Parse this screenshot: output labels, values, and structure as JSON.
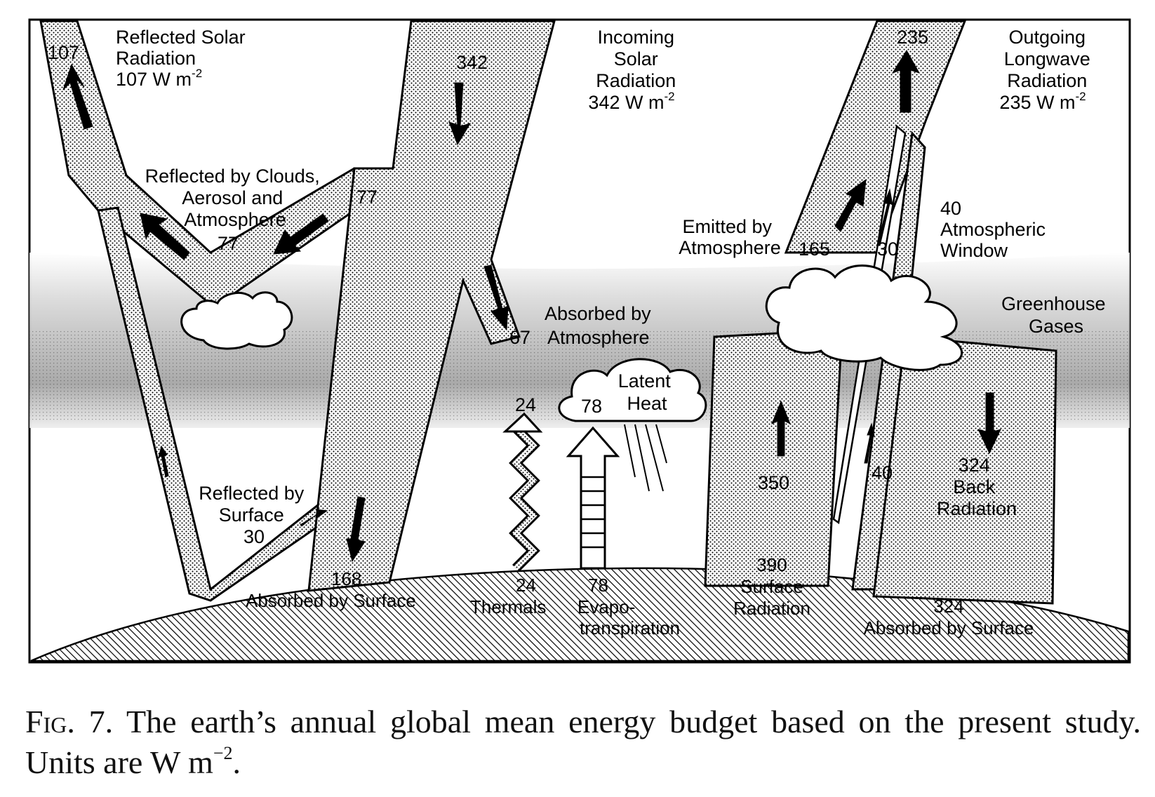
{
  "diagram": {
    "reflected_solar": {
      "lines": [
        "Reflected Solar",
        "Radiation",
        "107 W m"
      ],
      "sup": "-2",
      "value": "107"
    },
    "incoming_solar": {
      "lines": [
        "Incoming",
        "Solar",
        "Radiation",
        "342 W m"
      ],
      "sup": "-2",
      "value": "342"
    },
    "outgoing_longwave": {
      "lines": [
        "Outgoing",
        "Longwave",
        "Radiation",
        "235 W m"
      ],
      "sup": "-2",
      "value": "235"
    },
    "reflected_clouds": {
      "lines": [
        "Reflected by Clouds,",
        "Aerosol and",
        "Atmosphere"
      ],
      "value": "77",
      "arm_value": "77"
    },
    "emitted_atmosphere": {
      "lines": [
        "Emitted by",
        "Atmosphere"
      ],
      "value": "165",
      "cloud_value": "30"
    },
    "atmospheric_window": {
      "value": "40",
      "lines": [
        "Atmospheric",
        "Window"
      ]
    },
    "greenhouse": {
      "lines": [
        "Greenhouse",
        "Gases"
      ]
    },
    "absorbed_atmosphere": {
      "value": "67",
      "lines": [
        "Absorbed by",
        "Atmosphere"
      ]
    },
    "latent_heat": {
      "value": "78",
      "lines": [
        "Latent",
        "Heat"
      ]
    },
    "thermals_top": "24",
    "reflected_surface": {
      "lines": [
        "Reflected by",
        "Surface"
      ],
      "value": "30"
    },
    "surface_up": "350",
    "window_low": "40",
    "back_radiation": {
      "value": "324",
      "lines": [
        "Back",
        "Radiation"
      ]
    },
    "ground": {
      "absorbed_left_value": "168",
      "absorbed_left": "Absorbed by Surface",
      "thermals_value": "24",
      "thermals": "Thermals",
      "evapo_value": "78",
      "evapo": [
        "Evapo-",
        "transpiration"
      ],
      "surface_value": "390",
      "surface": [
        "Surface",
        "Radiation"
      ],
      "absorbed_right_value": "324",
      "absorbed_right": "Absorbed by Surface"
    }
  },
  "caption": {
    "fig": "Fig.",
    "number": "7.",
    "text": "The earth’s annual global mean energy budget based on the present study. Units are W m",
    "sup": "−2",
    "end": "."
  }
}
